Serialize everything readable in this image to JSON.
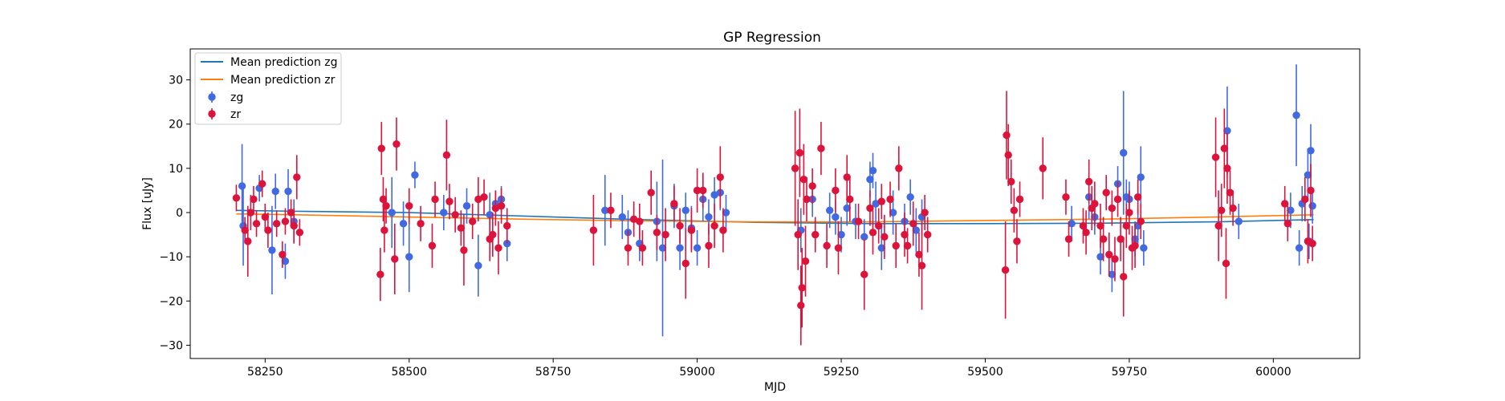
{
  "chart_data": {
    "type": "scatter",
    "title": "GP Regression",
    "xlabel": "MJD",
    "ylabel": "Flux [uJy]",
    "xlim": [
      58120,
      60150
    ],
    "ylim": [
      -33,
      37
    ],
    "xticks": [
      58250,
      58500,
      58750,
      59000,
      59250,
      59500,
      59750,
      60000
    ],
    "yticks": [
      -30,
      -20,
      -10,
      0,
      10,
      20,
      30
    ],
    "legend_position": "top-left",
    "series": [
      {
        "name": "Mean prediction zg",
        "kind": "line",
        "color": "#1f77b4",
        "x": [
          58200,
          58300,
          58500,
          58700,
          58900,
          59100,
          59300,
          59500,
          59700,
          59900,
          60070
        ],
        "y": [
          0.5,
          0.3,
          0.0,
          -0.8,
          -1.6,
          -2.2,
          -2.5,
          -2.5,
          -2.4,
          -2.1,
          -1.6
        ]
      },
      {
        "name": "Mean prediction zr",
        "kind": "line",
        "color": "#ff7f0e",
        "x": [
          58200,
          58300,
          58500,
          58700,
          58900,
          59100,
          59300,
          59500,
          59700,
          59900,
          60070
        ],
        "y": [
          -0.3,
          -0.5,
          -1.0,
          -1.5,
          -1.9,
          -2.1,
          -2.1,
          -1.8,
          -1.5,
          -1.0,
          -0.5
        ]
      },
      {
        "name": "zg",
        "kind": "errorbar",
        "color": "#4169e1",
        "points": [
          [
            58210,
            6.0,
            9.5
          ],
          [
            58212,
            -3.0,
            9.0
          ],
          [
            58240,
            5.5,
            3.0
          ],
          [
            58262,
            -8.5,
            10.0
          ],
          [
            58268,
            4.8,
            4.0
          ],
          [
            58285,
            -11.0,
            4.0
          ],
          [
            58290,
            4.8,
            5.0
          ],
          [
            58300,
            -2.0,
            5.0
          ],
          [
            58470,
            0.0,
            8.0
          ],
          [
            58490,
            -2.5,
            5.0
          ],
          [
            58500,
            -10.0,
            8.0
          ],
          [
            58510,
            8.5,
            3.0
          ],
          [
            58560,
            0.0,
            4.0
          ],
          [
            58600,
            1.5,
            4.0
          ],
          [
            58620,
            -12.0,
            7.0
          ],
          [
            58640,
            -0.5,
            5.0
          ],
          [
            58650,
            2.0,
            3.0
          ],
          [
            58660,
            3.0,
            3.0
          ],
          [
            58670,
            -7.0,
            4.0
          ],
          [
            58840,
            0.5,
            8.0
          ],
          [
            58870,
            -1.0,
            5.0
          ],
          [
            58880,
            -4.5,
            5.0
          ],
          [
            58900,
            -7.0,
            4.0
          ],
          [
            58930,
            -2.0,
            9.0
          ],
          [
            58940,
            -8.0,
            20.0
          ],
          [
            58960,
            1.5,
            5.0
          ],
          [
            58970,
            -8.0,
            5.0
          ],
          [
            58980,
            0.5,
            4.0
          ],
          [
            58990,
            -3.5,
            5.0
          ],
          [
            59000,
            -8.0,
            4.0
          ],
          [
            59010,
            3.0,
            5.0
          ],
          [
            59020,
            -1.0,
            4.0
          ],
          [
            59030,
            4.0,
            4.0
          ],
          [
            59040,
            4.5,
            4.0
          ],
          [
            59050,
            0.0,
            4.0
          ],
          [
            59180,
            -4.0,
            5.0
          ],
          [
            59200,
            3.0,
            4.0
          ],
          [
            59230,
            0.5,
            4.0
          ],
          [
            59240,
            -1.0,
            4.0
          ],
          [
            59250,
            -5.0,
            4.0
          ],
          [
            59260,
            1.0,
            4.0
          ],
          [
            59275,
            -2.0,
            4.0
          ],
          [
            59290,
            -5.5,
            4.0
          ],
          [
            59300,
            7.5,
            4.0
          ],
          [
            59305,
            9.5,
            4.0
          ],
          [
            59310,
            2.0,
            5.0
          ],
          [
            59320,
            -8.0,
            5.0
          ],
          [
            59340,
            0.0,
            5.0
          ],
          [
            59360,
            -2.0,
            4.0
          ],
          [
            59370,
            3.5,
            4.0
          ],
          [
            59380,
            -4.0,
            5.0
          ],
          [
            59390,
            -1.0,
            4.0
          ],
          [
            59650,
            -2.5,
            4.0
          ],
          [
            59680,
            3.5,
            5.0
          ],
          [
            59690,
            -1.0,
            4.0
          ],
          [
            59700,
            -10.0,
            4.0
          ],
          [
            59720,
            -14.0,
            4.0
          ],
          [
            59730,
            6.5,
            4.0
          ],
          [
            59740,
            13.5,
            14.0
          ],
          [
            59745,
            3.5,
            4.0
          ],
          [
            59750,
            3.0,
            4.0
          ],
          [
            59760,
            -6.0,
            4.0
          ],
          [
            59765,
            -3.0,
            4.0
          ],
          [
            59770,
            8.0,
            7.0
          ],
          [
            59775,
            -8.0,
            4.0
          ],
          [
            59920,
            18.5,
            10.0
          ],
          [
            59940,
            -2.0,
            4.0
          ],
          [
            60030,
            0.5,
            4.0
          ],
          [
            60040,
            22.0,
            11.5
          ],
          [
            60045,
            -8.0,
            4.0
          ],
          [
            60050,
            2.0,
            4.0
          ],
          [
            60060,
            8.5,
            6.0
          ],
          [
            60062,
            -6.5,
            4.0
          ],
          [
            60065,
            14.0,
            6.0
          ],
          [
            60068,
            1.5,
            4.0
          ]
        ]
      },
      {
        "name": "zr",
        "kind": "errorbar",
        "color": "#dc143c",
        "points": [
          [
            58200,
            3.3,
            3.0
          ],
          [
            58215,
            -4.0,
            3.0
          ],
          [
            58220,
            -6.5,
            8.0
          ],
          [
            58225,
            0.0,
            4.0
          ],
          [
            58230,
            3.0,
            3.0
          ],
          [
            58235,
            -2.5,
            3.0
          ],
          [
            58245,
            6.5,
            3.0
          ],
          [
            58250,
            -1.0,
            3.0
          ],
          [
            58255,
            -4.0,
            4.0
          ],
          [
            58270,
            -2.5,
            3.0
          ],
          [
            58280,
            -9.5,
            3.0
          ],
          [
            58285,
            -2.0,
            3.0
          ],
          [
            58295,
            0.0,
            3.0
          ],
          [
            58300,
            -3.0,
            4.0
          ],
          [
            58305,
            8.0,
            5.0
          ],
          [
            58310,
            -4.5,
            3.0
          ],
          [
            58450,
            -14.0,
            6.0
          ],
          [
            58452,
            14.5,
            6.0
          ],
          [
            58455,
            3.0,
            5.0
          ],
          [
            58457,
            -4.0,
            5.0
          ],
          [
            58460,
            1.5,
            4.0
          ],
          [
            58475,
            -10.5,
            8.0
          ],
          [
            58478,
            15.5,
            6.0
          ],
          [
            58500,
            1.5,
            4.0
          ],
          [
            58520,
            -2.5,
            4.0
          ],
          [
            58540,
            -7.5,
            5.0
          ],
          [
            58545,
            3.0,
            4.0
          ],
          [
            58565,
            13.0,
            8.0
          ],
          [
            58570,
            2.5,
            4.0
          ],
          [
            58580,
            -0.5,
            4.0
          ],
          [
            58590,
            -3.5,
            4.0
          ],
          [
            58595,
            -8.5,
            8.0
          ],
          [
            58610,
            -2.0,
            4.0
          ],
          [
            58620,
            3.0,
            5.0
          ],
          [
            58630,
            3.5,
            4.0
          ],
          [
            58640,
            -6.0,
            5.0
          ],
          [
            58645,
            -5.0,
            5.0
          ],
          [
            58650,
            1.0,
            4.0
          ],
          [
            58655,
            -8.0,
            6.0
          ],
          [
            58660,
            1.5,
            4.0
          ],
          [
            58670,
            -3.0,
            4.0
          ],
          [
            58820,
            -4.0,
            8.0
          ],
          [
            58850,
            0.5,
            4.0
          ],
          [
            58880,
            -8.0,
            4.0
          ],
          [
            58890,
            -1.5,
            4.0
          ],
          [
            58900,
            -2.0,
            4.0
          ],
          [
            58905,
            -8.0,
            4.0
          ],
          [
            58920,
            4.5,
            5.0
          ],
          [
            58930,
            -4.5,
            4.0
          ],
          [
            58945,
            -5.0,
            6.0
          ],
          [
            58960,
            2.0,
            4.0
          ],
          [
            58970,
            -3.0,
            4.0
          ],
          [
            58980,
            -11.5,
            8.0
          ],
          [
            58990,
            -4.0,
            5.0
          ],
          [
            59000,
            5.0,
            5.0
          ],
          [
            59010,
            5.0,
            4.0
          ],
          [
            59020,
            -7.5,
            5.0
          ],
          [
            59030,
            -3.0,
            5.0
          ],
          [
            59040,
            8.0,
            7.0
          ],
          [
            59045,
            -4.0,
            5.0
          ],
          [
            59170,
            10.0,
            13.0
          ],
          [
            59175,
            -5.0,
            8.0
          ],
          [
            59178,
            13.5,
            10.0
          ],
          [
            59180,
            -21.0,
            9.0
          ],
          [
            59182,
            -17.0,
            9.0
          ],
          [
            59185,
            7.5,
            8.0
          ],
          [
            59188,
            -11.0,
            8.0
          ],
          [
            59190,
            3.0,
            5.0
          ],
          [
            59200,
            6.0,
            4.0
          ],
          [
            59205,
            -5.0,
            4.0
          ],
          [
            59215,
            14.5,
            6.0
          ],
          [
            59225,
            -7.5,
            5.0
          ],
          [
            59240,
            5.0,
            5.0
          ],
          [
            59245,
            -8.0,
            6.0
          ],
          [
            59260,
            8.0,
            5.0
          ],
          [
            59265,
            3.0,
            5.0
          ],
          [
            59280,
            -2.0,
            4.0
          ],
          [
            59290,
            -14.0,
            8.0
          ],
          [
            59300,
            1.0,
            4.0
          ],
          [
            59305,
            -4.5,
            5.0
          ],
          [
            59315,
            -3.0,
            4.0
          ],
          [
            59320,
            2.5,
            4.0
          ],
          [
            59325,
            -5.5,
            5.0
          ],
          [
            59335,
            3.0,
            4.0
          ],
          [
            59345,
            -7.5,
            5.0
          ],
          [
            59350,
            10.0,
            5.0
          ],
          [
            59360,
            -5.0,
            5.0
          ],
          [
            59365,
            -7.5,
            4.0
          ],
          [
            59375,
            -2.5,
            5.0
          ],
          [
            59385,
            -9.5,
            5.0
          ],
          [
            59390,
            -12.0,
            10.0
          ],
          [
            59395,
            0.0,
            4.0
          ],
          [
            59400,
            -5.0,
            4.0
          ],
          [
            59535,
            -13.0,
            11.0
          ],
          [
            59537,
            17.5,
            10.0
          ],
          [
            59540,
            13.0,
            7.0
          ],
          [
            59545,
            7.0,
            5.0
          ],
          [
            59550,
            0.5,
            5.0
          ],
          [
            59555,
            -6.5,
            5.0
          ],
          [
            59560,
            3.0,
            4.0
          ],
          [
            59600,
            10.0,
            7.0
          ],
          [
            59640,
            3.5,
            4.0
          ],
          [
            59645,
            -6.0,
            4.0
          ],
          [
            59670,
            -3.0,
            4.0
          ],
          [
            59675,
            -4.5,
            5.0
          ],
          [
            59680,
            7.0,
            5.0
          ],
          [
            59685,
            1.0,
            5.0
          ],
          [
            59690,
            2.0,
            5.0
          ],
          [
            59700,
            -3.0,
            5.0
          ],
          [
            59705,
            -6.0,
            5.0
          ],
          [
            59710,
            4.5,
            4.0
          ],
          [
            59715,
            -9.5,
            5.0
          ],
          [
            59720,
            1.0,
            4.0
          ],
          [
            59725,
            -10.5,
            5.0
          ],
          [
            59730,
            3.0,
            4.0
          ],
          [
            59735,
            -6.0,
            5.0
          ],
          [
            59740,
            -14.5,
            9.0
          ],
          [
            59745,
            -3.0,
            5.0
          ],
          [
            59750,
            0.0,
            5.0
          ],
          [
            59755,
            -8.0,
            5.0
          ],
          [
            59760,
            -7.5,
            5.0
          ],
          [
            59765,
            3.5,
            4.0
          ],
          [
            59770,
            -2.0,
            4.0
          ],
          [
            59900,
            12.5,
            9.0
          ],
          [
            59905,
            -3.0,
            8.0
          ],
          [
            59910,
            0.5,
            6.0
          ],
          [
            59915,
            14.5,
            9.0
          ],
          [
            59918,
            -11.5,
            8.0
          ],
          [
            59920,
            10.0,
            8.0
          ],
          [
            59925,
            4.5,
            5.0
          ],
          [
            59930,
            1.0,
            4.0
          ],
          [
            60020,
            2.0,
            4.0
          ],
          [
            60025,
            -2.5,
            4.0
          ],
          [
            60055,
            3.0,
            5.0
          ],
          [
            60060,
            -6.5,
            5.0
          ],
          [
            60065,
            5.0,
            6.0
          ],
          [
            60068,
            -7.0,
            4.0
          ]
        ]
      }
    ]
  }
}
